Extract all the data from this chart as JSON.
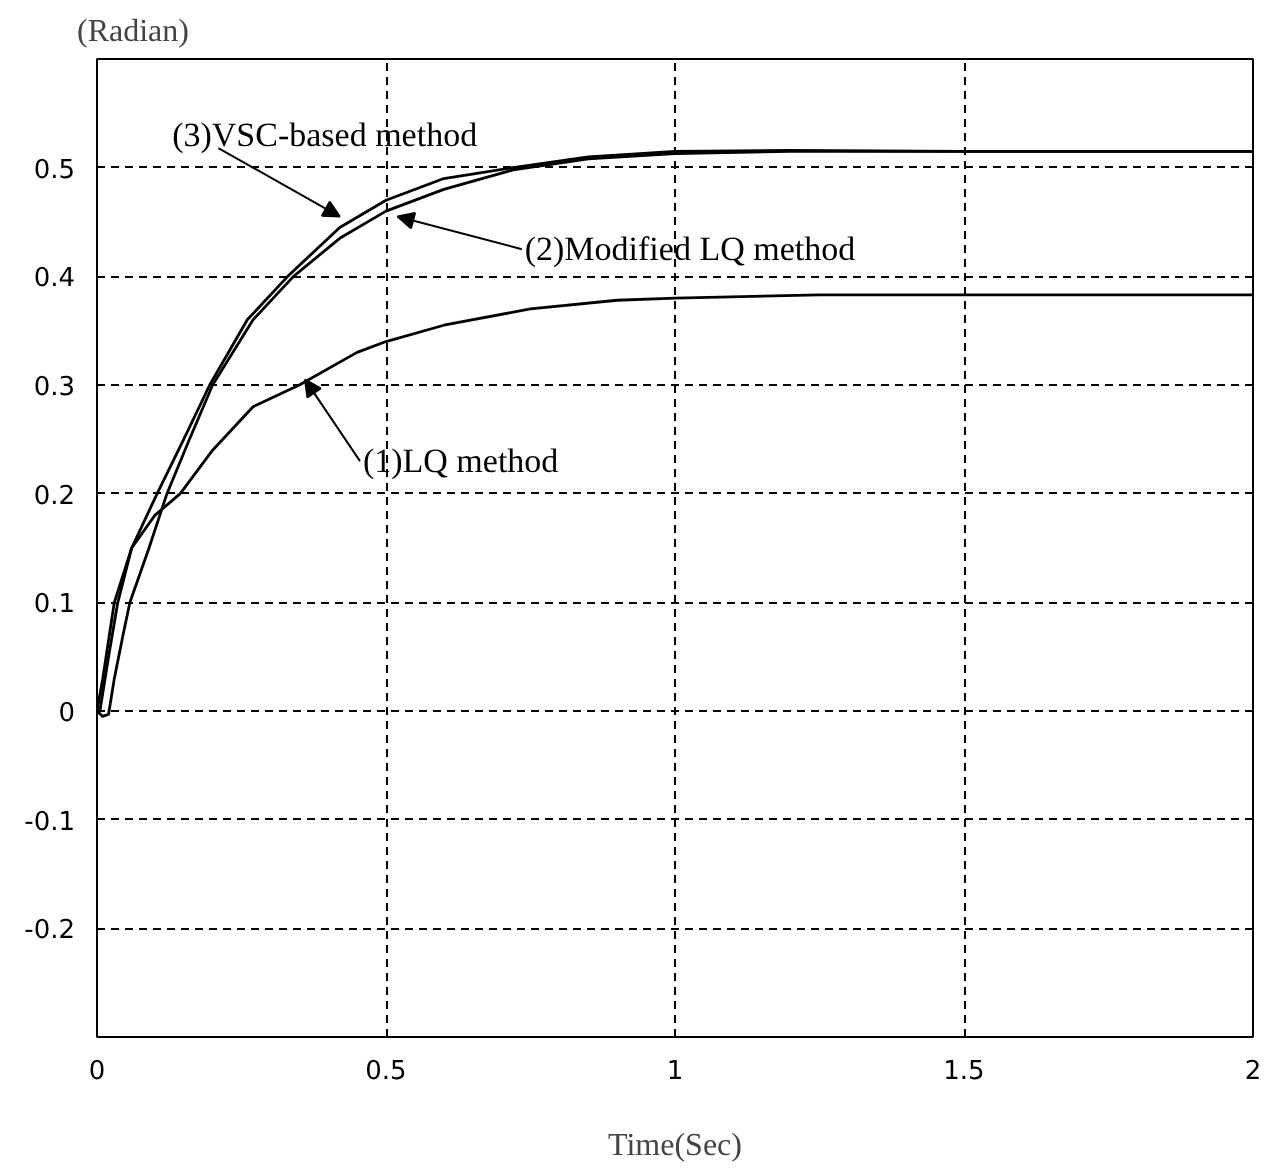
{
  "chart_data": {
    "type": "line",
    "xlabel": "Time(Sec)",
    "ylabel": "(Radian)",
    "xlim": [
      0,
      2
    ],
    "ylim": [
      -0.3,
      0.6
    ],
    "xticks": [
      0,
      0.5,
      1,
      1.5,
      2
    ],
    "yticks": [
      -0.2,
      -0.1,
      0,
      0.1,
      0.2,
      0.3,
      0.4,
      0.5
    ],
    "grid": true,
    "marker": "none",
    "line_style": "solid",
    "series": [
      {
        "color": "#000000",
        "x": [
          0,
          0.005,
          0.02,
          0.036,
          0.06,
          0.104,
          0.15,
          0.195,
          0.26,
          0.33,
          0.42,
          0.5,
          0.6,
          0.72,
          0.85,
          1.0,
          1.2,
          1.5,
          2.0
        ],
        "values": [
          0,
          0,
          0.05,
          0.1,
          0.15,
          0.2,
          0.25,
          0.3,
          0.36,
          0.4,
          0.445,
          0.47,
          0.49,
          0.5,
          0.51,
          0.515,
          0.516,
          0.515,
          0.515
        ]
      },
      {
        "color": "#000000",
        "x": [
          0,
          0.01,
          0.02,
          0.03,
          0.045,
          0.057,
          0.09,
          0.121,
          0.16,
          0.2,
          0.27,
          0.34,
          0.42,
          0.5,
          0.6,
          0.72,
          0.85,
          1.0,
          1.2,
          1.5,
          2.0
        ],
        "values": [
          0,
          -0.005,
          -0.003,
          0.03,
          0.07,
          0.1,
          0.15,
          0.2,
          0.25,
          0.3,
          0.36,
          0.4,
          0.435,
          0.46,
          0.48,
          0.498,
          0.508,
          0.513,
          0.515,
          0.515,
          0.515
        ]
      },
      {
        "color": "#000000",
        "x": [
          0,
          0.01,
          0.03,
          0.06,
          0.1,
          0.144,
          0.2,
          0.27,
          0.35,
          0.45,
          0.5,
          0.6,
          0.75,
          0.9,
          1.0,
          1.25,
          1.5,
          2.0
        ],
        "values": [
          0,
          0.03,
          0.1,
          0.15,
          0.18,
          0.2,
          0.24,
          0.28,
          0.3,
          0.33,
          0.34,
          0.355,
          0.37,
          0.378,
          0.38,
          0.383,
          0.383,
          0.383
        ]
      }
    ],
    "annotations": [
      {
        "text": "(3)VSC-based method",
        "x": 0.42,
        "y": 0.455
      },
      {
        "text": "(2)Modified LQ method",
        "x": 0.52,
        "y": 0.455
      },
      {
        "text": "(1)LQ method",
        "x": 0.36,
        "y": 0.305
      }
    ]
  }
}
